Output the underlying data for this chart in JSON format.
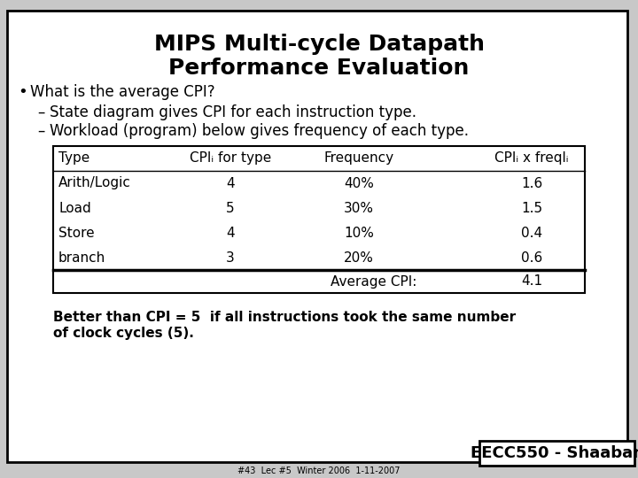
{
  "title_line1": "MIPS Multi-cycle Datapath",
  "title_line2": "Performance Evaluation",
  "bullet": "What is the average CPI?",
  "sub1": "State diagram gives CPI for each instruction type.",
  "sub2": "Workload (program) below gives frequency of each type.",
  "table_headers": [
    "Type",
    "CPIᵢ for type",
    "Frequency",
    "CPIᵢ x freqlᵢ"
  ],
  "table_rows": [
    [
      "Arith/Logic",
      "4",
      "40%",
      "1.6"
    ],
    [
      "Load",
      "5",
      "30%",
      "1.5"
    ],
    [
      "Store",
      "4",
      "10%",
      "0.4"
    ],
    [
      "branch",
      "3",
      "20%",
      "0.6"
    ]
  ],
  "avg_label": "Average CPI:",
  "avg_value": "4.1",
  "footer_line1": "Better than CPI = 5  if all instructions took the same number",
  "footer_line2": "of clock cycles (5).",
  "brand": "EECC550 - Shaaban",
  "footnote": "#43  Lec #5  Winter 2006  1-11-2007",
  "bg_color": "#c8c8c8",
  "slide_bg": "#ffffff",
  "border_color": "#000000",
  "title_fontsize": 18,
  "body_fontsize": 12,
  "table_fontsize": 11,
  "footer_fontsize": 11,
  "brand_fontsize": 13
}
